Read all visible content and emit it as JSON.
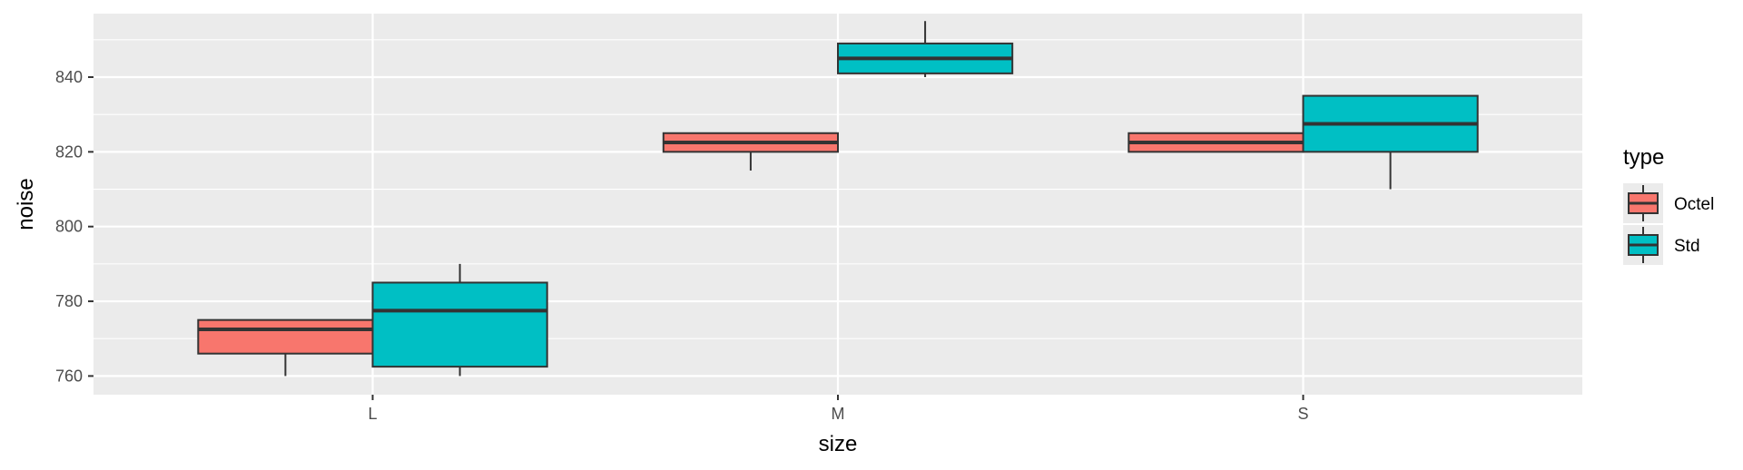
{
  "chart_data": {
    "type": "boxplot",
    "xlabel": "size",
    "ylabel": "noise",
    "categories": [
      "L",
      "M",
      "S"
    ],
    "ylim": [
      755,
      857
    ],
    "yticks": [
      760,
      780,
      800,
      820,
      840
    ],
    "grid": true,
    "legend": {
      "title": "type",
      "placement": "right"
    },
    "series": [
      {
        "name": "Octel",
        "color": "#F8766D",
        "boxes": [
          {
            "category": "L",
            "min": 760,
            "q1": 766,
            "median": 772.5,
            "q3": 775,
            "max": 775
          },
          {
            "category": "M",
            "min": 815,
            "q1": 820,
            "median": 822.5,
            "q3": 825,
            "max": 825
          },
          {
            "category": "S",
            "min": 820,
            "q1": 820,
            "median": 822.5,
            "q3": 825,
            "max": 825
          }
        ]
      },
      {
        "name": "Std",
        "color": "#00BFC4",
        "boxes": [
          {
            "category": "L",
            "min": 760,
            "q1": 762.5,
            "median": 777.5,
            "q3": 785,
            "max": 790
          },
          {
            "category": "M",
            "min": 840,
            "q1": 841,
            "median": 845,
            "q3": 849,
            "max": 855
          },
          {
            "category": "S",
            "min": 810,
            "q1": 820,
            "median": 827.5,
            "q3": 835,
            "max": 835
          }
        ]
      }
    ]
  }
}
